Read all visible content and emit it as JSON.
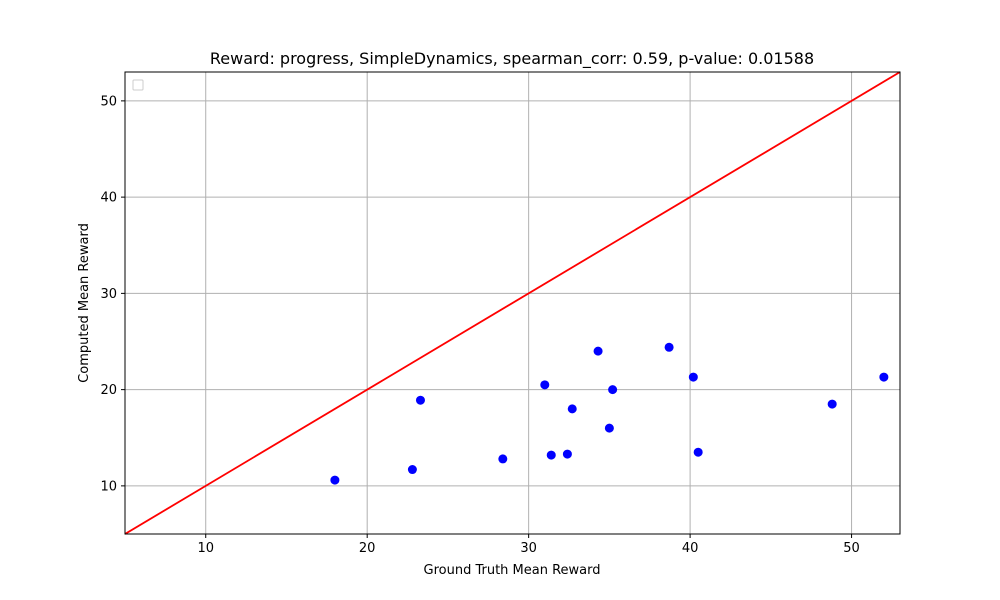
{
  "chart_data": {
    "type": "scatter",
    "title": "Reward: progress, SimpleDynamics, spearman_corr: 0.59, p-value: 0.01588",
    "xlabel": "Ground Truth Mean Reward",
    "ylabel": "Computed Mean Reward",
    "xlim": [
      5,
      53
    ],
    "ylim": [
      5,
      53
    ],
    "xticks": [
      10,
      20,
      30,
      40,
      50
    ],
    "yticks": [
      10,
      20,
      30,
      40,
      50
    ],
    "grid": true,
    "legend": "top-left (empty)",
    "series": [
      {
        "kind": "points",
        "color": "#0000ff",
        "x": [
          18.0,
          22.8,
          23.3,
          28.4,
          31.0,
          31.4,
          32.4,
          32.7,
          34.3,
          35.0,
          35.2,
          38.7,
          40.2,
          40.5,
          48.8,
          52.0
        ],
        "y": [
          10.6,
          11.7,
          18.9,
          12.8,
          20.5,
          13.2,
          13.3,
          18.0,
          24.0,
          16.0,
          20.0,
          24.4,
          21.3,
          13.5,
          18.5,
          21.3
        ]
      },
      {
        "kind": "line",
        "color": "#ff0000",
        "x": [
          5,
          53
        ],
        "y": [
          5,
          53
        ]
      }
    ]
  }
}
